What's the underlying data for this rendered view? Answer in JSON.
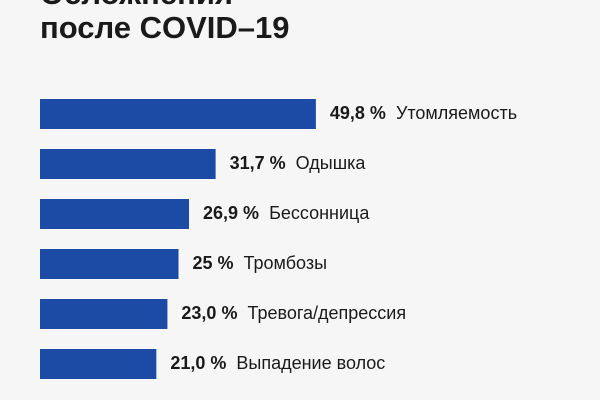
{
  "chart_data": {
    "type": "hbar",
    "title": [
      "Осложнения",
      "после COVID–19"
    ],
    "categories": [
      "Утомляемость",
      "Одышка",
      "Бессонница",
      "Тромбозы",
      "Тревога/депрессия",
      "Выпадение волос"
    ],
    "values": [
      49.8,
      31.7,
      26.9,
      25,
      23.0,
      21.0
    ],
    "value_labels": [
      "49,8 %",
      "31,7 %",
      "26,9 %",
      "25 %",
      "23,0 %",
      "21,0 %"
    ],
    "color": "#1c4ba6"
  }
}
